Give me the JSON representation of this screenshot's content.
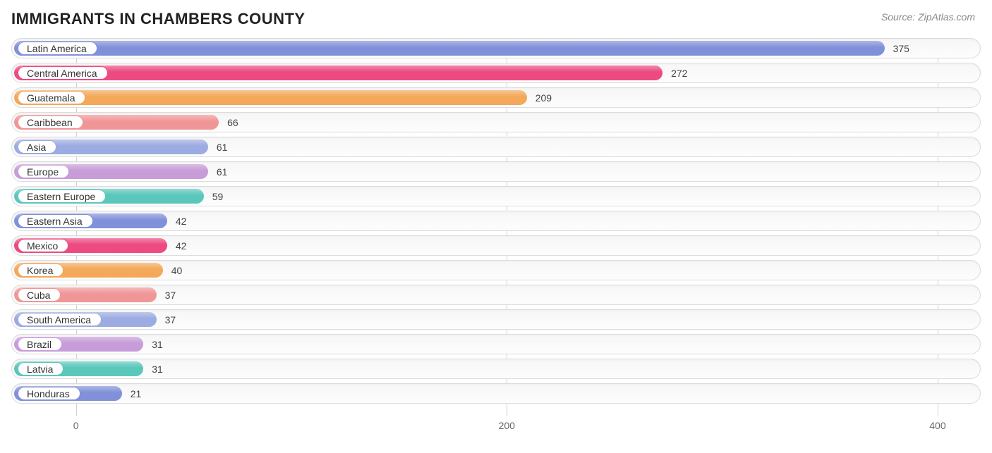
{
  "title": "IMMIGRANTS IN CHAMBERS COUNTY",
  "source": "Source: ZipAtlas.com",
  "chart": {
    "type": "bar",
    "orientation": "horizontal",
    "xlim": [
      -30,
      420
    ],
    "xticks": [
      0,
      200,
      400
    ],
    "xtick_labels": [
      "0",
      "200",
      "400"
    ],
    "track_bg": "#f7f7f7",
    "track_border": "#dcdcdc",
    "grid_color": "#d0d0d0",
    "label_fontsize": 14,
    "value_fontsize": 14,
    "palette_cycle": [
      "#8191d9",
      "#ed4a82",
      "#f3a85a",
      "#f19696",
      "#9cabe2",
      "#c79cd8",
      "#5ac7bb"
    ],
    "bars": [
      {
        "label": "Latin America",
        "value": 375,
        "color": "#8191d9"
      },
      {
        "label": "Central America",
        "value": 272,
        "color": "#ed4a82"
      },
      {
        "label": "Guatemala",
        "value": 209,
        "color": "#f3a85a"
      },
      {
        "label": "Caribbean",
        "value": 66,
        "color": "#f19696"
      },
      {
        "label": "Asia",
        "value": 61,
        "color": "#9cabe2"
      },
      {
        "label": "Europe",
        "value": 61,
        "color": "#c79cd8"
      },
      {
        "label": "Eastern Europe",
        "value": 59,
        "color": "#5ac7bb"
      },
      {
        "label": "Eastern Asia",
        "value": 42,
        "color": "#8191d9"
      },
      {
        "label": "Mexico",
        "value": 42,
        "color": "#ed4a82"
      },
      {
        "label": "Korea",
        "value": 40,
        "color": "#f3a85a"
      },
      {
        "label": "Cuba",
        "value": 37,
        "color": "#f19696"
      },
      {
        "label": "South America",
        "value": 37,
        "color": "#9cabe2"
      },
      {
        "label": "Brazil",
        "value": 31,
        "color": "#c79cd8"
      },
      {
        "label": "Latvia",
        "value": 31,
        "color": "#5ac7bb"
      },
      {
        "label": "Honduras",
        "value": 21,
        "color": "#8191d9"
      }
    ]
  }
}
